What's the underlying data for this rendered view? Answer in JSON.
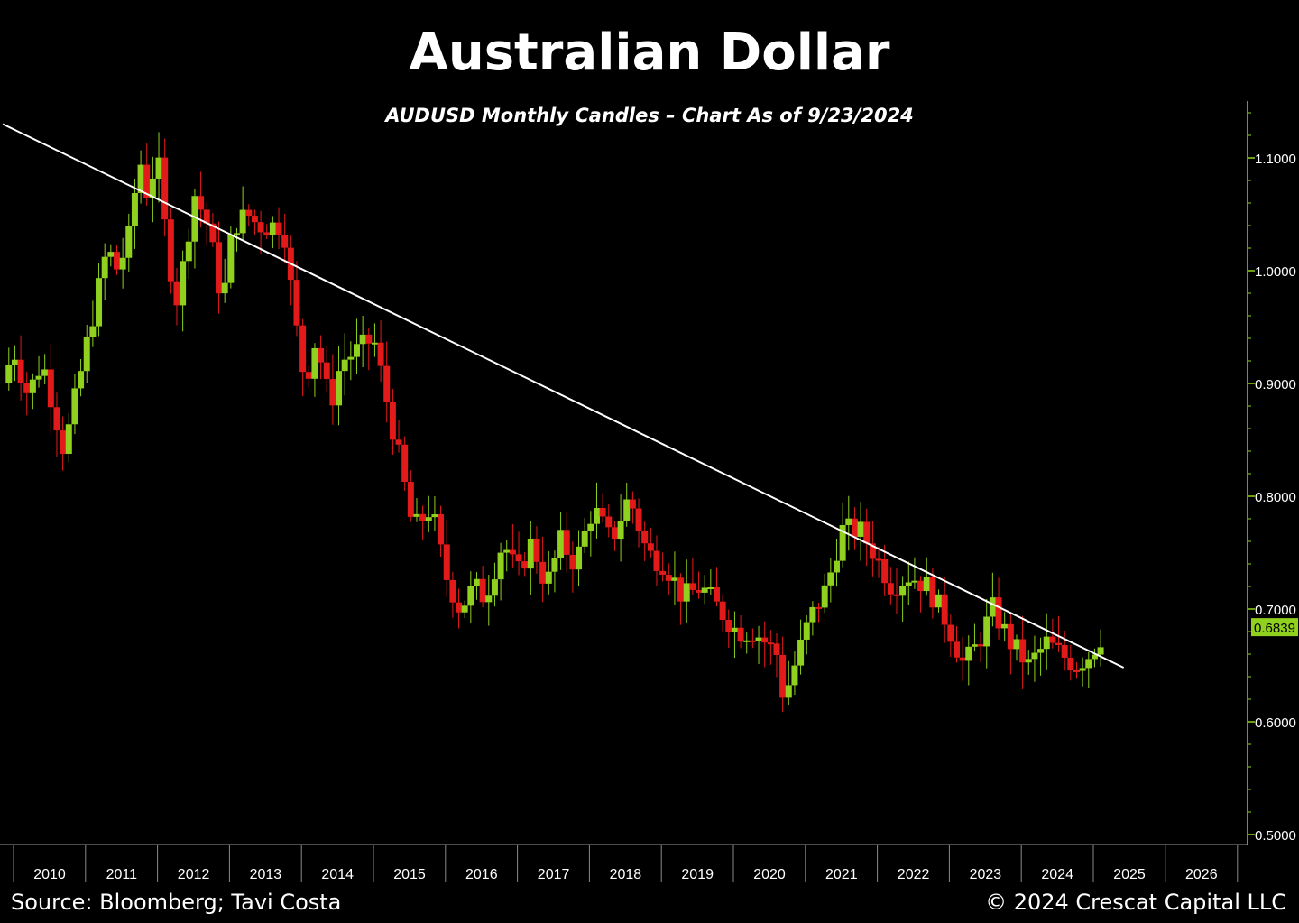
{
  "chart_data": {
    "type": "candlestick",
    "title": "Australian Dollar",
    "subtitle": "AUDUSD Monthly Candles – Chart As of 9/23/2024",
    "ylim": [
      0.5,
      1.15
    ],
    "yticks": [
      {
        "value": 1.1,
        "label": "1.1000"
      },
      {
        "value": 1.0,
        "label": "1.0000"
      },
      {
        "value": 0.9,
        "label": "0.9000"
      },
      {
        "value": 0.8,
        "label": "0.8000"
      },
      {
        "value": 0.7,
        "label": "0.7000"
      },
      {
        "value": 0.6,
        "label": "0.6000"
      },
      {
        "value": 0.5,
        "label": "0.5000"
      }
    ],
    "years": [
      "2010",
      "2011",
      "2012",
      "2013",
      "2014",
      "2015",
      "2016",
      "2017",
      "2018",
      "2019",
      "2020",
      "2021",
      "2022",
      "2023",
      "2024",
      "2025",
      "2026"
    ],
    "last_price": {
      "value": 0.6839,
      "label": "0.6839"
    },
    "trendline": {
      "start": {
        "year": 2009.35,
        "value": 1.13
      },
      "end": {
        "year": 2024.92,
        "value": 0.648
      }
    },
    "colors": {
      "up": "#8fd11e",
      "down": "#e21a1a",
      "trendline": "#ffffff",
      "axis": "#8fd11e",
      "background": "#000000"
    },
    "close_path": [
      [
        2009.35,
        0.9
      ],
      [
        2009.5,
        0.93
      ],
      [
        2009.7,
        0.89
      ],
      [
        2009.9,
        0.92
      ],
      [
        2010.2,
        0.84
      ],
      [
        2010.4,
        0.9
      ],
      [
        2010.6,
        0.96
      ],
      [
        2010.8,
        1.02
      ],
      [
        2010.95,
        1.0
      ],
      [
        2011.1,
        1.03
      ],
      [
        2011.25,
        1.1
      ],
      [
        2011.35,
        1.07
      ],
      [
        2011.5,
        1.1
      ],
      [
        2011.6,
        1.04
      ],
      [
        2011.75,
        0.97
      ],
      [
        2011.9,
        1.02
      ],
      [
        2012.0,
        1.07
      ],
      [
        2012.2,
        1.04
      ],
      [
        2012.4,
        0.97
      ],
      [
        2012.55,
        1.04
      ],
      [
        2012.75,
        1.05
      ],
      [
        2012.9,
        1.04
      ],
      [
        2013.05,
        1.04
      ],
      [
        2013.25,
        1.04
      ],
      [
        2013.4,
        0.96
      ],
      [
        2013.55,
        0.9
      ],
      [
        2013.7,
        0.94
      ],
      [
        2013.9,
        0.88
      ],
      [
        2014.05,
        0.92
      ],
      [
        2014.3,
        0.93
      ],
      [
        2014.5,
        0.94
      ],
      [
        2014.7,
        0.88
      ],
      [
        2014.9,
        0.82
      ],
      [
        2015.05,
        0.77
      ],
      [
        2015.3,
        0.79
      ],
      [
        2015.5,
        0.73
      ],
      [
        2015.7,
        0.7
      ],
      [
        2015.9,
        0.72
      ],
      [
        2016.05,
        0.71
      ],
      [
        2016.3,
        0.76
      ],
      [
        2016.5,
        0.73
      ],
      [
        2016.7,
        0.76
      ],
      [
        2016.9,
        0.72
      ],
      [
        2017.1,
        0.76
      ],
      [
        2017.3,
        0.74
      ],
      [
        2017.55,
        0.79
      ],
      [
        2017.8,
        0.76
      ],
      [
        2018.05,
        0.8
      ],
      [
        2018.3,
        0.75
      ],
      [
        2018.55,
        0.74
      ],
      [
        2018.8,
        0.71
      ],
      [
        2019.05,
        0.72
      ],
      [
        2019.3,
        0.7
      ],
      [
        2019.55,
        0.68
      ],
      [
        2019.8,
        0.68
      ],
      [
        2020.1,
        0.66
      ],
      [
        2020.2,
        0.62
      ],
      [
        2020.35,
        0.65
      ],
      [
        2020.55,
        0.69
      ],
      [
        2020.8,
        0.72
      ],
      [
        2021.0,
        0.77
      ],
      [
        2021.25,
        0.77
      ],
      [
        2021.45,
        0.75
      ],
      [
        2021.7,
        0.72
      ],
      [
        2021.95,
        0.73
      ],
      [
        2022.2,
        0.72
      ],
      [
        2022.45,
        0.69
      ],
      [
        2022.7,
        0.65
      ],
      [
        2022.9,
        0.67
      ],
      [
        2023.1,
        0.7
      ],
      [
        2023.35,
        0.67
      ],
      [
        2023.6,
        0.65
      ],
      [
        2023.85,
        0.67
      ],
      [
        2024.05,
        0.66
      ],
      [
        2024.25,
        0.65
      ],
      [
        2024.45,
        0.66
      ],
      [
        2024.65,
        0.68
      ]
    ]
  },
  "footer": {
    "source": "Source: Bloomberg; Tavi Costa",
    "copyright": "© 2024 Crescat Capital LLC"
  }
}
